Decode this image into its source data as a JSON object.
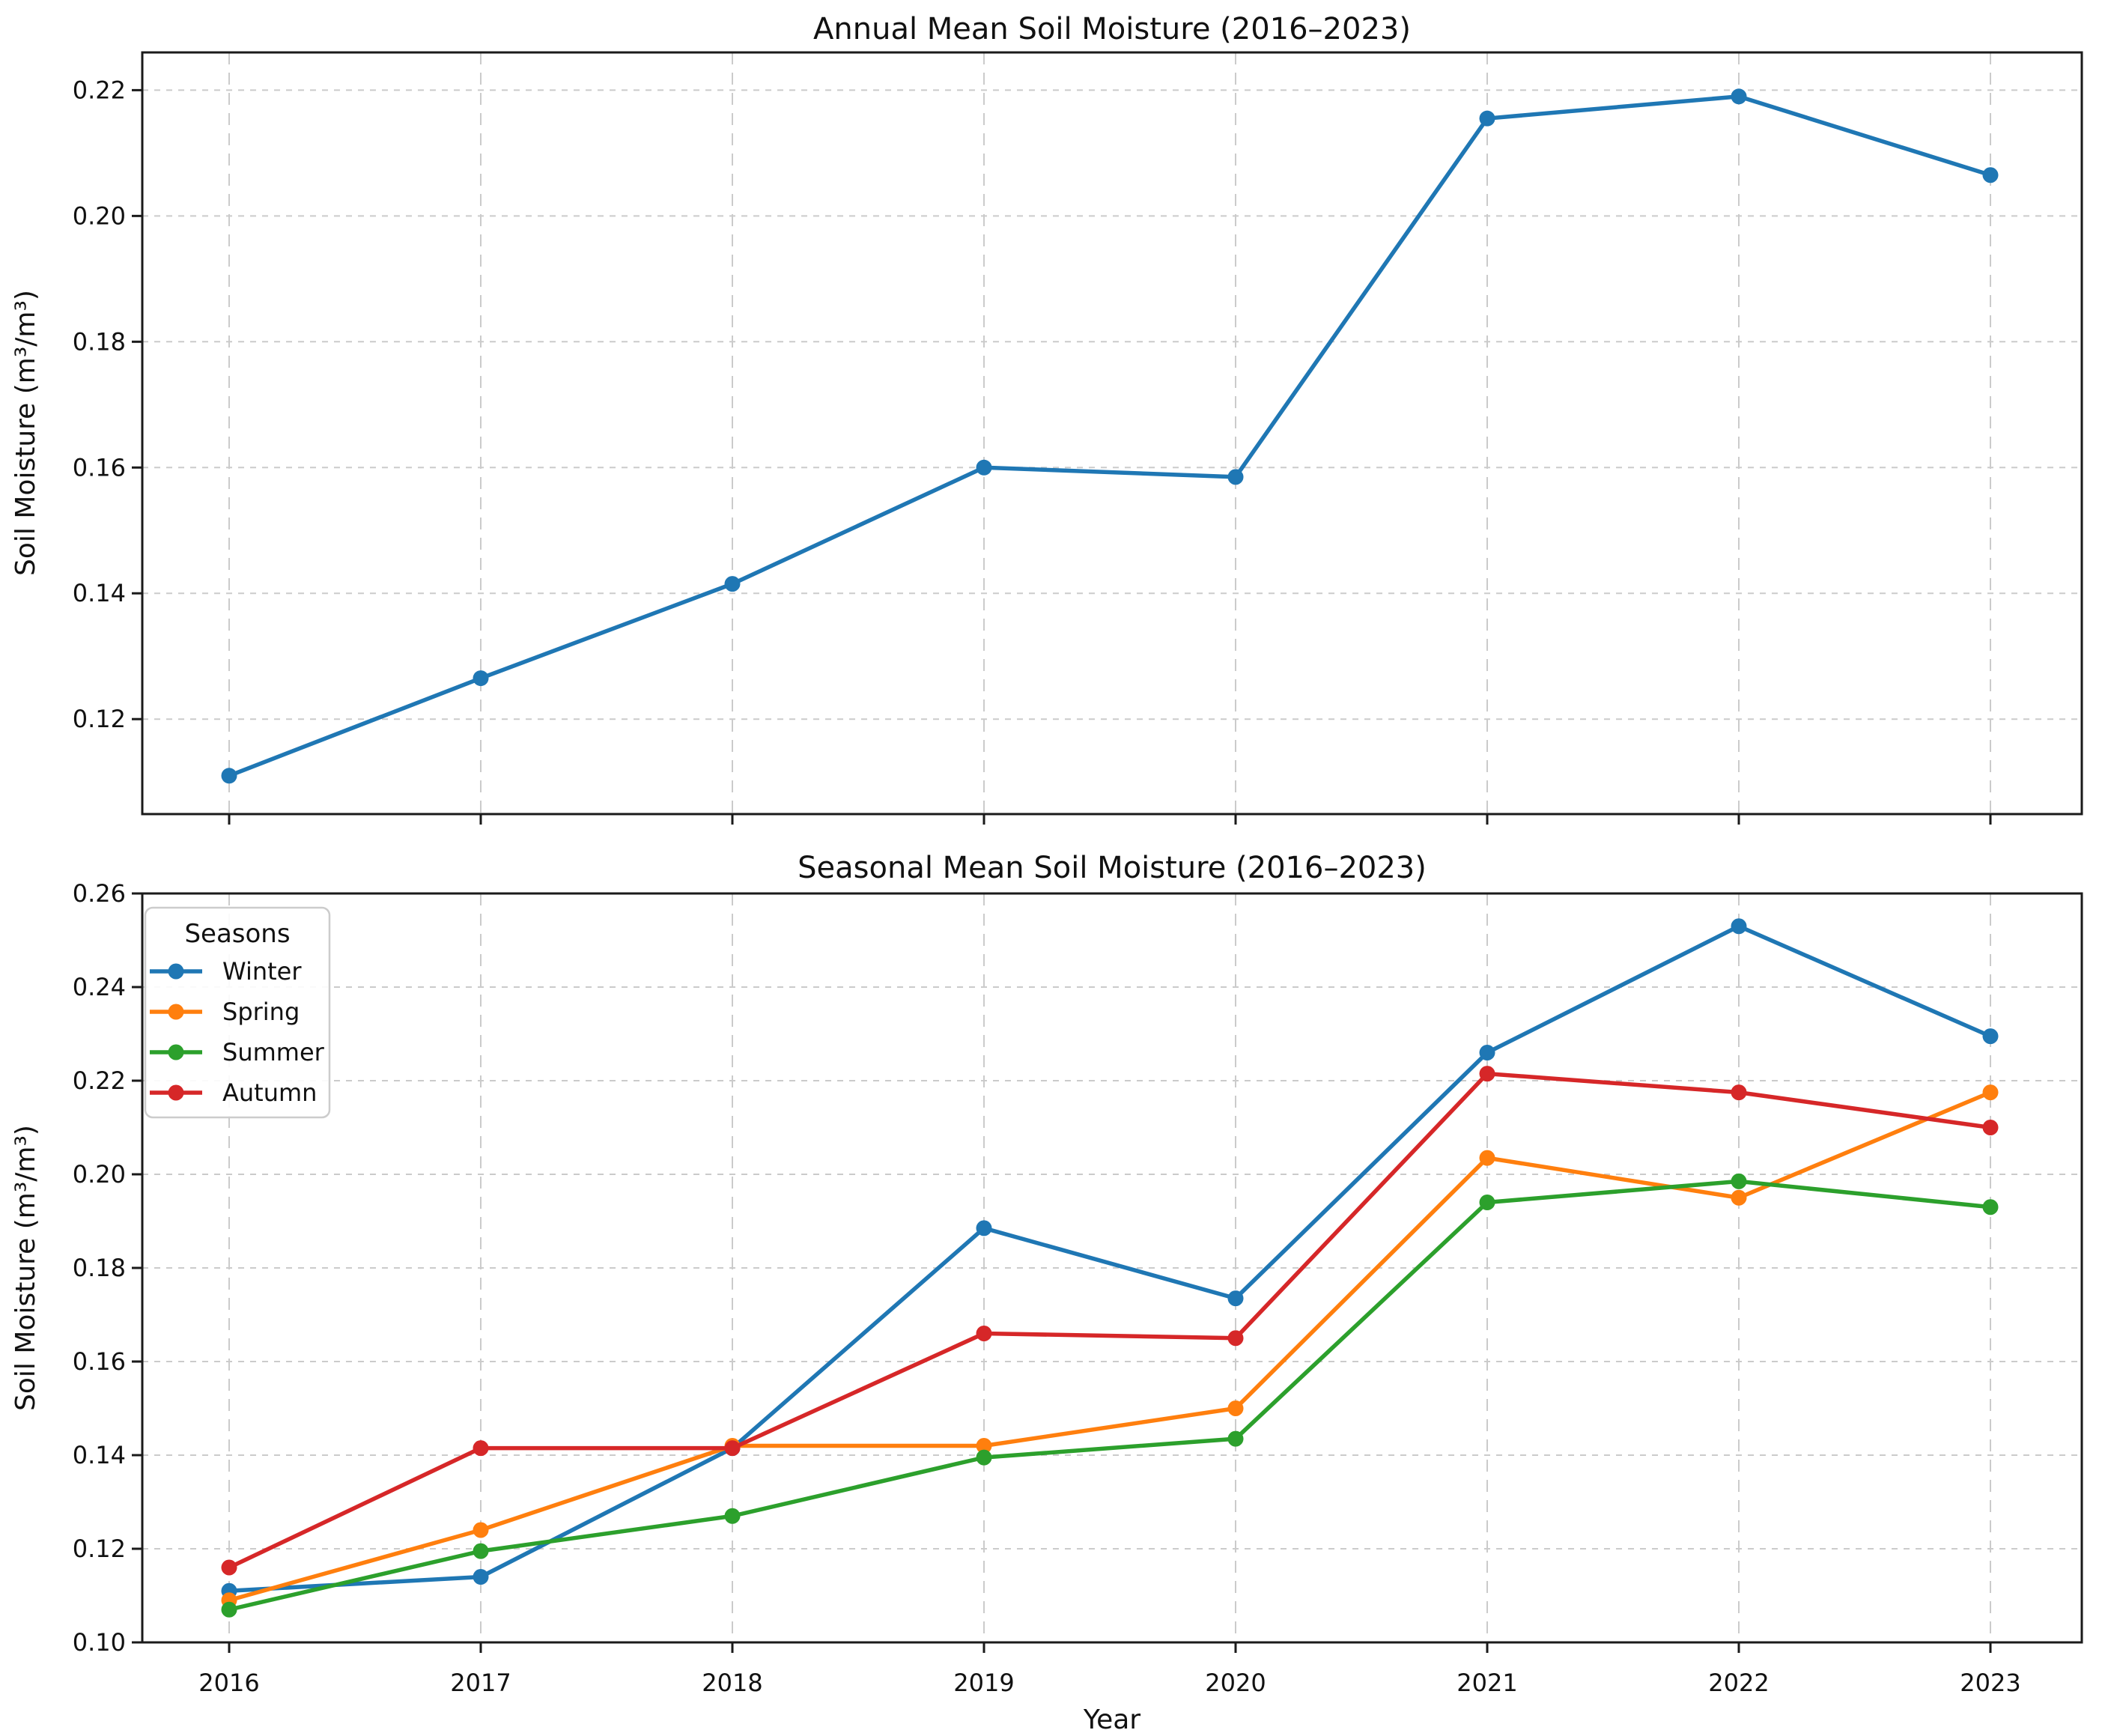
{
  "figure": {
    "background": "#ffffff",
    "grid_color": "#cbcbcb",
    "spine_color": "#1a1a1a"
  },
  "chart_data": [
    {
      "type": "line",
      "title": "Annual Mean Soil Moisture (2016–2023)",
      "xlabel": "",
      "ylabel": "Soil Moisture (m³/m³)",
      "x": [
        2016,
        2017,
        2018,
        2019,
        2020,
        2021,
        2022,
        2023
      ],
      "series": [
        {
          "name": "Annual",
          "color": "#1f77b4",
          "values": [
            0.111,
            0.1265,
            0.1415,
            0.16,
            0.1585,
            0.2155,
            0.219,
            0.2065
          ]
        }
      ],
      "ylim": [
        0.1049,
        0.226
      ],
      "yticks": [
        0.12,
        0.14,
        0.16,
        0.18,
        0.2,
        0.22
      ],
      "grid": true,
      "legend": null,
      "show_x_tick_labels": false
    },
    {
      "type": "line",
      "title": "Seasonal Mean Soil Moisture (2016–2023)",
      "xlabel": "Year",
      "ylabel": "Soil Moisture (m³/m³)",
      "x": [
        2016,
        2017,
        2018,
        2019,
        2020,
        2021,
        2022,
        2023
      ],
      "series": [
        {
          "name": "Winter",
          "color": "#1f77b4",
          "values": [
            0.111,
            0.114,
            0.1415,
            0.1885,
            0.1735,
            0.226,
            0.253,
            0.2295
          ]
        },
        {
          "name": "Spring",
          "color": "#ff7f0e",
          "values": [
            0.109,
            0.124,
            0.142,
            0.142,
            0.15,
            0.2035,
            0.195,
            0.2175
          ]
        },
        {
          "name": "Summer",
          "color": "#2ca02c",
          "values": [
            0.107,
            0.1195,
            0.127,
            0.1395,
            0.1435,
            0.194,
            0.1985,
            0.193
          ]
        },
        {
          "name": "Autumn",
          "color": "#d62728",
          "values": [
            0.116,
            0.1415,
            0.1415,
            0.166,
            0.165,
            0.2215,
            0.2175,
            0.21
          ]
        }
      ],
      "ylim": [
        0.1,
        0.26
      ],
      "yticks": [
        0.1,
        0.12,
        0.14,
        0.16,
        0.18,
        0.2,
        0.22,
        0.24,
        0.26
      ],
      "grid": true,
      "legend": {
        "title": "Seasons",
        "position": "upper-left"
      },
      "show_x_tick_labels": true
    }
  ]
}
